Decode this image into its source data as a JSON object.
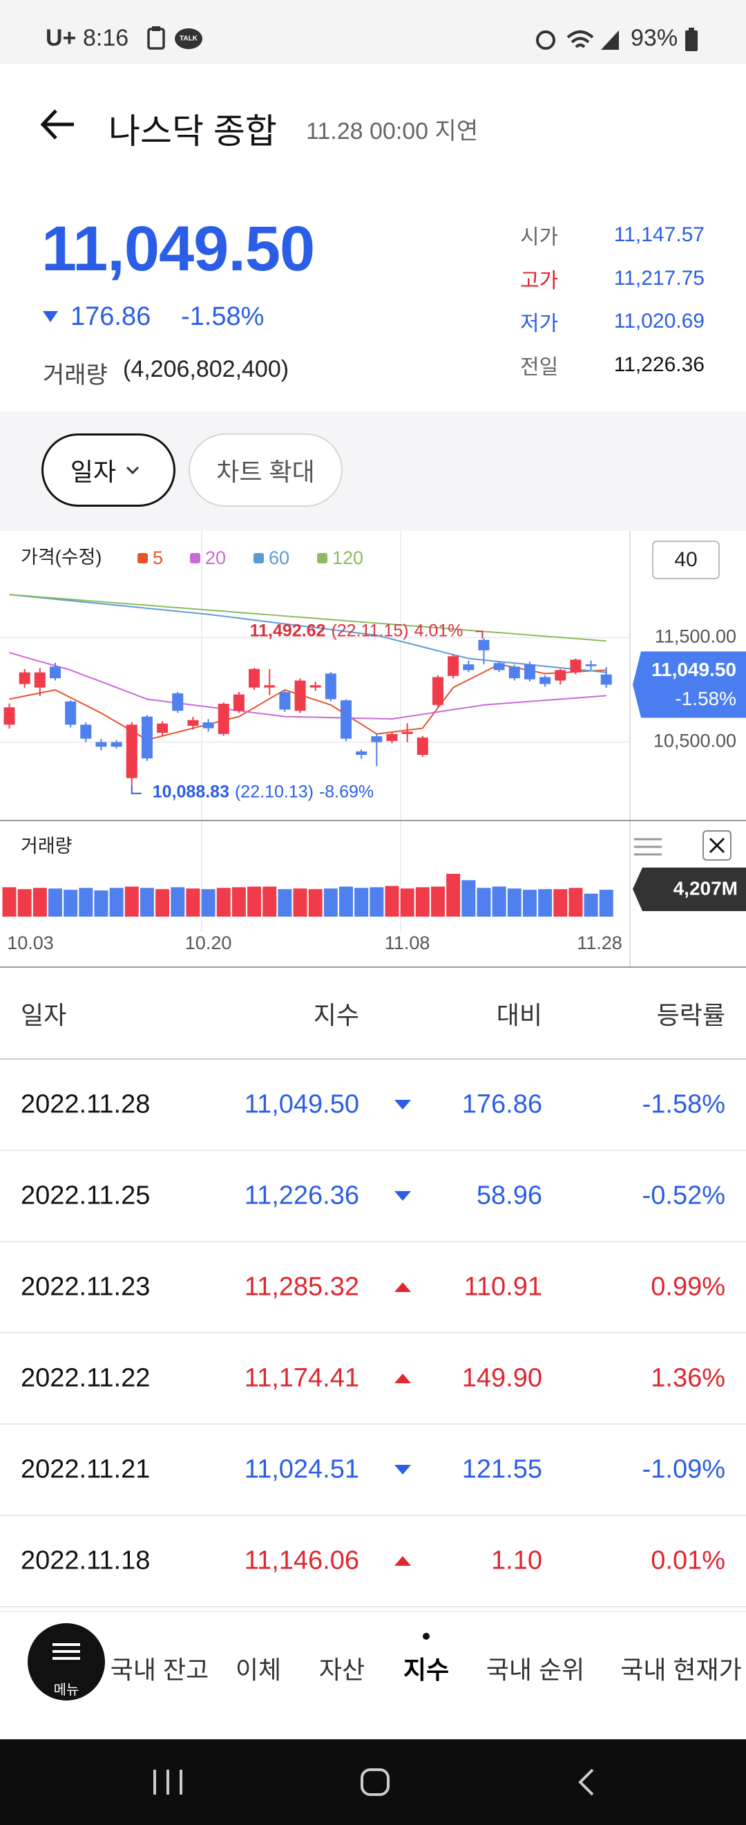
{
  "status_bar": {
    "carrier": "U+",
    "time": "8:16",
    "talk": "TALK",
    "battery": "93%"
  },
  "header": {
    "title": "나스닥 종합",
    "subtitle": "11.28 00:00 지연"
  },
  "quote": {
    "price": "11,049.50",
    "change": "176.86",
    "change_rate": "-1.58%",
    "volume_label": "거래량",
    "volume": "(4,206,802,400)",
    "stats": [
      {
        "label": "시가",
        "value": "11,147.57"
      },
      {
        "label": "고가",
        "value": "11,217.75"
      },
      {
        "label": "저가",
        "value": "11,020.69"
      },
      {
        "label": "전일",
        "value": "11,226.36"
      }
    ]
  },
  "controls": {
    "period": "일자",
    "expand": "차트 확대"
  },
  "chart_data": {
    "type": "candlestick",
    "title": "가격(수정)",
    "period_box": "40",
    "categories": [
      "10.03",
      null,
      null,
      null,
      null,
      null,
      null,
      null,
      null,
      null,
      null,
      null,
      null,
      "10.20",
      null,
      null,
      null,
      null,
      null,
      null,
      null,
      null,
      null,
      null,
      null,
      null,
      "11.08",
      null,
      null,
      null,
      null,
      null,
      null,
      null,
      null,
      null,
      null,
      null,
      null,
      "11.28"
    ],
    "open": [
      10667,
      11056,
      11022,
      11222,
      10889,
      10667,
      10500,
      10500,
      10156,
      10744,
      10589,
      10967,
      10656,
      10689,
      10578,
      10800,
      11022,
      11022,
      10978,
      10800,
      11022,
      11156,
      10900,
      10411,
      10556,
      10511,
      10578,
      10378,
      10856,
      11133,
      11244,
      11478,
      11256,
      11222,
      11244,
      11122,
      11089,
      11167,
      11244,
      11147.57
    ],
    "high": [
      10870,
      11200,
      11210,
      11260,
      10900,
      10690,
      10530,
      10520,
      10690,
      10760,
      10700,
      10980,
      10740,
      10720,
      10880,
      10980,
      11210,
      11200,
      10990,
      11110,
      11080,
      11170,
      10910,
      10430,
      10580,
      10590,
      10680,
      10560,
      11140,
      11340,
      11280,
      11492.62,
      11270,
      11240,
      11270,
      11140,
      11200,
      11300,
      11280,
      11217.75
    ],
    "low": [
      10630,
      11020,
      10940,
      11090,
      10640,
      10500,
      10420,
      10440,
      10088.83,
      10320,
      10560,
      10780,
      10620,
      10600,
      10560,
      10780,
      11000,
      10950,
      10790,
      10780,
      10990,
      10890,
      10510,
      10340,
      10270,
      10490,
      10500,
      10360,
      10840,
      11110,
      11170,
      11244,
      11170,
      11090,
      11080,
      11030,
      11050,
      11150,
      11190,
      11020.69
    ],
    "close": [
      10833,
      11167,
      11167,
      11111,
      10667,
      10533,
      10456,
      10456,
      10667,
      10344,
      10678,
      10800,
      10711,
      10633,
      10867,
      10956,
      11200,
      11044,
      10811,
      11089,
      11044,
      10911,
      10533,
      10378,
      10500,
      10578,
      10600,
      10544,
      11122,
      11322,
      11189,
      11378,
      11189,
      11111,
      11100,
      11056,
      11189,
      11289,
      11226.36,
      11049.5
    ],
    "up_color": "#ef3b4a",
    "down_color": "#4f80ee",
    "ylim": [
      9750,
      12520
    ],
    "yticks": [
      {
        "value": 11500,
        "label": "11,500.00"
      },
      {
        "value": 10500,
        "label": "10,500.00"
      }
    ],
    "moving_averages": [
      {
        "name": "5",
        "color": "#e8542a",
        "values": [
          10911,
          10941,
          10970,
          11000,
          10926,
          10852,
          10778,
          10693,
          10607,
          10522,
          10559,
          10596,
          10633,
          10670,
          10707,
          10744,
          10829,
          10915,
          11000,
          10952,
          10904,
          10856,
          10763,
          10671,
          10578,
          10596,
          10615,
          10633,
          10828,
          11022,
          11096,
          11170,
          11244,
          11215,
          11185,
          11156,
          11164,
          11172,
          11181,
          11189
        ]
      },
      {
        "name": "20",
        "color": "#c86ad8",
        "values": [
          11356,
          11314,
          11272,
          11231,
          11189,
          11133,
          11078,
          11022,
          10967,
          10911,
          10892,
          10874,
          10855,
          10837,
          10818,
          10800,
          10781,
          10763,
          10744,
          10741,
          10738,
          10735,
          10731,
          10728,
          10725,
          10722,
          10744,
          10766,
          10789,
          10811,
          10833,
          10856,
          10867,
          10878,
          10889,
          10900,
          10911,
          10922,
          10933,
          10944
        ]
      },
      {
        "name": "60",
        "color": "#5b9bd5",
        "values": [
          11911,
          11896,
          11882,
          11867,
          11853,
          11838,
          11824,
          11809,
          11795,
          11780,
          11766,
          11751,
          11737,
          11722,
          11704,
          11686,
          11667,
          11649,
          11631,
          11613,
          11595,
          11577,
          11558,
          11540,
          11522,
          11485,
          11448,
          11411,
          11374,
          11337,
          11300,
          11285,
          11270,
          11256,
          11241,
          11226,
          11211,
          11196,
          11182,
          11167
        ]
      },
      {
        "name": "120",
        "color": "#8dbb5e",
        "values": [
          11911,
          11900,
          11888,
          11877,
          11866,
          11854,
          11843,
          11831,
          11820,
          11809,
          11797,
          11786,
          11775,
          11763,
          11752,
          11740,
          11729,
          11718,
          11706,
          11695,
          11684,
          11672,
          11661,
          11649,
          11638,
          11627,
          11615,
          11604,
          11593,
          11581,
          11570,
          11558,
          11547,
          11536,
          11524,
          11513,
          11502,
          11490,
          11479,
          11467
        ]
      }
    ],
    "high_note": {
      "value": 11492.62,
      "label": "11,492.62",
      "date": "(22.11.15)",
      "rate": "4.01%"
    },
    "low_note": {
      "value": 10088.83,
      "label": "10,088.83",
      "date": "(22.10.13)",
      "rate": "-8.69%"
    },
    "last_price": {
      "value": 11049.5,
      "label": "11,049.50",
      "rate": "-1.58%"
    },
    "volume": {
      "title": "거래량",
      "values": [
        4600,
        4300,
        4500,
        4400,
        4200,
        4500,
        4100,
        4500,
        4700,
        4500,
        4300,
        4600,
        4400,
        4300,
        4500,
        4600,
        4700,
        4700,
        4300,
        4400,
        4300,
        4400,
        4700,
        4500,
        4600,
        4800,
        4400,
        4600,
        4700,
        6700,
        5700,
        4500,
        4700,
        4400,
        4200,
        4300,
        4300,
        4500,
        3600,
        4207
      ],
      "last_label": "4,207M"
    }
  },
  "table": {
    "columns": [
      "일자",
      "지수",
      "대비",
      "등락률"
    ],
    "rows": [
      [
        "2022.11.28",
        "11,049.50",
        "176.86",
        "-1.58%"
      ],
      [
        "2022.11.25",
        "11,226.36",
        "58.96",
        "-0.52%"
      ],
      [
        "2022.11.23",
        "11,285.32",
        "110.91",
        "0.99%"
      ],
      [
        "2022.11.22",
        "11,174.41",
        "149.90",
        "1.36%"
      ],
      [
        "2022.11.21",
        "11,024.51",
        "121.55",
        "-1.09%"
      ],
      [
        "2022.11.18",
        "11,146.06",
        "1.10",
        "0.01%"
      ]
    ]
  },
  "nav": {
    "menu": "메뉴",
    "items": [
      "국내 잔고",
      "이체",
      "자산",
      "지수",
      "국내 순위",
      "국내 현재가"
    ],
    "active": "지수"
  }
}
